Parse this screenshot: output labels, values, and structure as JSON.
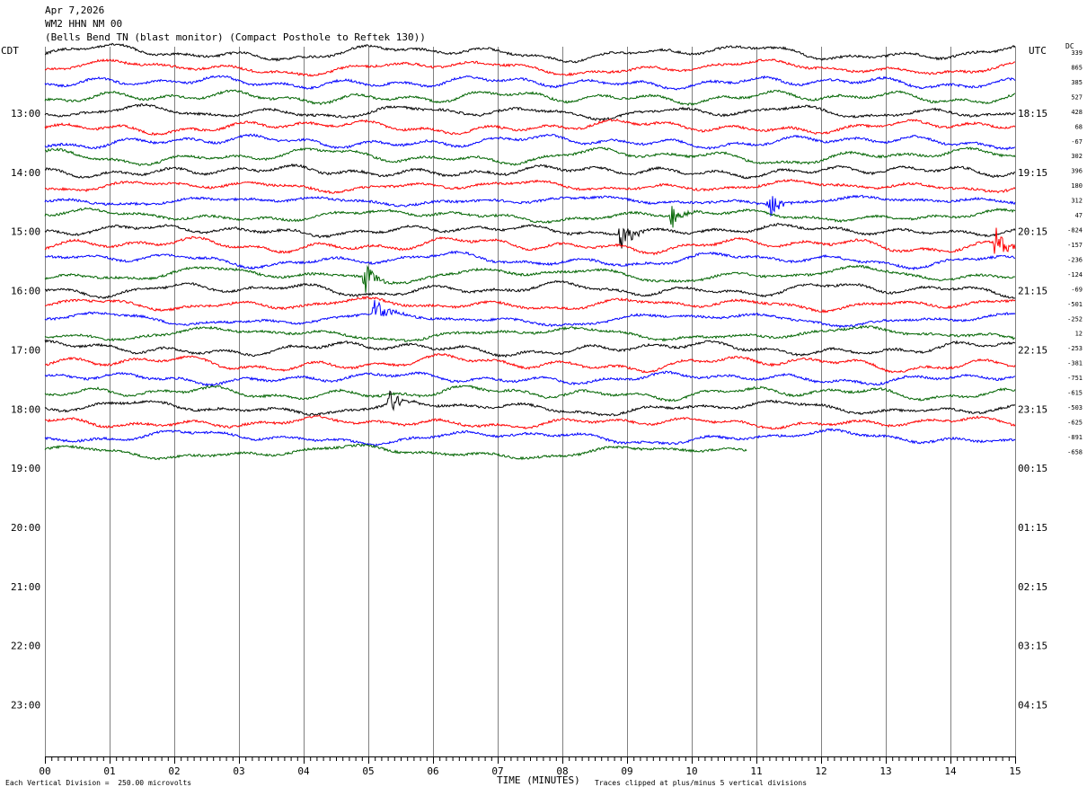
{
  "header": {
    "date": "Apr 7,2026",
    "channel": "WM2 HHN NM 00",
    "station": "(Bells Bend TN (blast monitor) (Compact Posthole to Reftek 130))"
  },
  "left_axis_label": "CDT",
  "right_axis_label": "UTC",
  "dc_label": "DC",
  "footer": {
    "scale_note": "Each Vertical Division =  250.00 microvolts",
    "x_title": "TIME (MINUTES)",
    "clip_note": "Traces clipped at plus/minus 5 vertical divisions"
  },
  "colors": {
    "black": "#000000",
    "red": "#ff0000",
    "blue": "#0000ff",
    "green": "#006400",
    "grid": "#808080"
  },
  "chart_data": {
    "type": "line",
    "title": "WM2 HHN NM 00",
    "xlabel": "TIME (MINUTES)",
    "xlim": [
      0,
      15
    ],
    "x_ticks": [
      "00",
      "01",
      "02",
      "03",
      "04",
      "05",
      "06",
      "07",
      "08",
      "09",
      "10",
      "11",
      "12",
      "13",
      "14",
      "15"
    ],
    "left_hour_labels": [
      "13:00",
      "14:00",
      "15:00",
      "16:00",
      "17:00",
      "18:00",
      "19:00",
      "20:00",
      "21:00",
      "22:00",
      "23:00"
    ],
    "right_hour_labels": [
      "18:15",
      "19:15",
      "20:15",
      "21:15",
      "22:15",
      "23:15",
      "00:15",
      "01:15",
      "02:15",
      "03:15",
      "04:15"
    ],
    "trace_colors": [
      "black",
      "red",
      "blue",
      "green"
    ],
    "dc_offsets": [
      "339",
      "865",
      "385",
      "527",
      "428",
      "68",
      "-67",
      "302",
      "396",
      "180",
      "312",
      "47",
      "-824",
      "-157",
      "-236",
      "-124",
      "-69",
      "-501",
      "-252",
      "12",
      "-253",
      "-381",
      "-751",
      "-615",
      "-503",
      "-625",
      "-891",
      "-658"
    ],
    "trace_count": 28,
    "last_trace_end_minute": 10.85,
    "events": [
      {
        "trace": 13,
        "color": "red",
        "minute": 14.7
      },
      {
        "trace": 12,
        "color": "black",
        "minute": 8.9
      },
      {
        "trace": 11,
        "color": "green",
        "minute": 9.7
      },
      {
        "trace": 10,
        "color": "blue",
        "minute": 11.2
      },
      {
        "trace": 15,
        "color": "green",
        "minute": 4.95
      },
      {
        "trace": 18,
        "color": "blue",
        "minute": 5.1
      },
      {
        "trace": 24,
        "color": "black",
        "minute": 5.3
      }
    ]
  }
}
